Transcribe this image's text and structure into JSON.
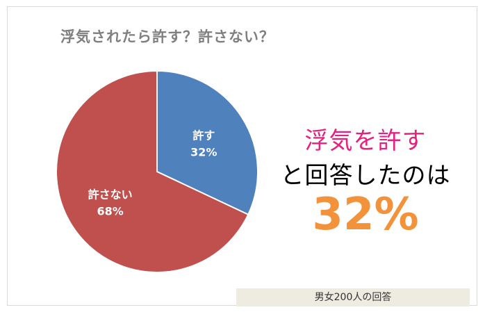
{
  "title": "浮気されたら許す？許さない？",
  "chart_data": {
    "type": "pie",
    "title": "浮気されたら許す？許さない？",
    "slices": [
      {
        "label": "許す",
        "value": 32,
        "value_label": "32%",
        "color": "#4f81bd"
      },
      {
        "label": "許さない",
        "value": 68,
        "value_label": "68%",
        "color": "#c0504d"
      }
    ]
  },
  "headline": {
    "line1": "浮気を許す",
    "line2": "と回答したのは",
    "value": "32%",
    "line1_color": "#e6207e",
    "value_color": "#f2923a"
  },
  "footnote": "男女200人の回答"
}
